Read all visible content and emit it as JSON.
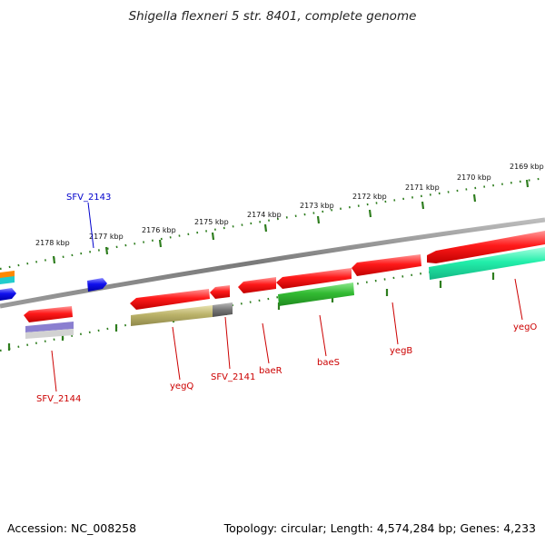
{
  "title": "Shigella flexneri 5 str. 8401, complete genome",
  "footer": {
    "accession": "Accession: NC_008258",
    "summary": "Topology: circular; Length: 4,574,284 bp; Genes: 4,233"
  },
  "scale_labels": [
    "2178 kbp",
    "2177 kbp",
    "2176 kbp",
    "2175 kbp",
    "2174 kbp",
    "2173 kbp",
    "2172 kbp",
    "2171 kbp",
    "2170 kbp",
    "2169 kbp"
  ],
  "gene_labels": [
    {
      "text": "SFV_2143",
      "color": "#0000cc"
    },
    {
      "text": "SFV_2144",
      "color": "#cc0000"
    },
    {
      "text": "yegQ",
      "color": "#cc0000"
    },
    {
      "text": "SFV_2141",
      "color": "#cc0000"
    },
    {
      "text": "baeR",
      "color": "#cc0000"
    },
    {
      "text": "baeS",
      "color": "#cc0000"
    },
    {
      "text": "yegB",
      "color": "#cc0000"
    },
    {
      "text": "yegO",
      "color": "#cc0000"
    }
  ],
  "colors": {
    "backbone": "#888888",
    "ruler": "#2e7d1e",
    "forward_gene": "#ff0000",
    "reverse_gene": "#ff0000",
    "rna_green": "#33bb33",
    "aqua": "#22eeaa",
    "olive": "#bbb36a",
    "grey": "#777777",
    "blue": "#0000ee",
    "orange": "#ff8800",
    "cyan": "#22cccc",
    "lavender": "#8a7fd0"
  }
}
